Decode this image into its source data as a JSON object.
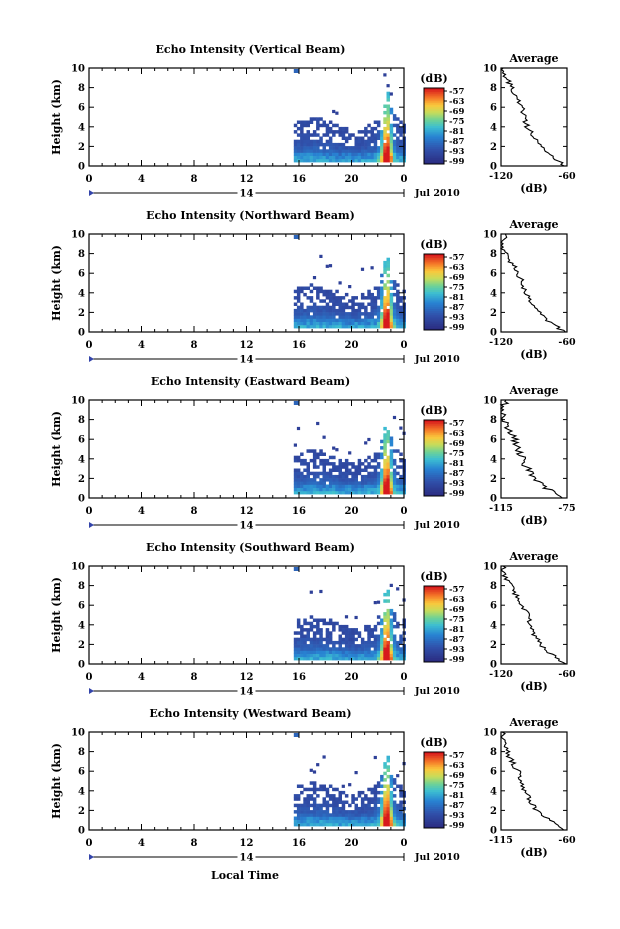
{
  "figure": {
    "xlabel": "Local Time",
    "date_label": "Jul 2010",
    "day_label": "14"
  },
  "chart_data": [
    {
      "type": "heatmap",
      "title": "Echo Intensity (Vertical Beam)",
      "ylabel": "Height (km)",
      "xlim": [
        0,
        24
      ],
      "ylim": [
        0,
        10
      ],
      "xticks": [
        "0",
        "4",
        "8",
        "12",
        "16",
        "20",
        "0"
      ],
      "yticks": [
        "0",
        "2",
        "4",
        "6",
        "8",
        "10"
      ],
      "colorbar": {
        "unit": "(dB)",
        "ticks": [
          "-57",
          "-63",
          "-69",
          "-75",
          "-81",
          "-87",
          "-93",
          "-99"
        ]
      },
      "data_extent": {
        "x_start": 15.6,
        "x_end": 24,
        "top_km": 7.5
      },
      "avg_profile": {
        "title": "Average",
        "xlabel": "(dB)",
        "xlim": [
          -120,
          -60
        ],
        "xticks": [
          "-120",
          "-60"
        ],
        "height_km": [
          0,
          1,
          2,
          3,
          4,
          5,
          6,
          7,
          8,
          9,
          10
        ],
        "db": [
          -62,
          -74,
          -84,
          -90,
          -96,
          -99,
          -101,
          -106,
          -110,
          -115,
          -118
        ]
      }
    },
    {
      "type": "heatmap",
      "title": "Echo Intensity (Northward Beam)",
      "ylabel": "Height (km)",
      "xlim": [
        0,
        24
      ],
      "ylim": [
        0,
        10
      ],
      "xticks": [
        "0",
        "4",
        "8",
        "12",
        "16",
        "20",
        "0"
      ],
      "yticks": [
        "0",
        "2",
        "4",
        "6",
        "8",
        "10"
      ],
      "colorbar": {
        "unit": "(dB)",
        "ticks": [
          "-57",
          "-63",
          "-69",
          "-75",
          "-81",
          "-87",
          "-93",
          "-99"
        ]
      },
      "data_extent": {
        "x_start": 15.6,
        "x_end": 24,
        "top_km": 7.5
      },
      "avg_profile": {
        "title": "Average",
        "xlabel": "(dB)",
        "xlim": [
          -120,
          -60
        ],
        "xticks": [
          "-120",
          "-60"
        ],
        "height_km": [
          0,
          1,
          2,
          3,
          4,
          5,
          6,
          7,
          8,
          9,
          10
        ],
        "db": [
          -62,
          -76,
          -86,
          -92,
          -97,
          -101,
          -104,
          -110,
          -116,
          -120,
          -116
        ]
      }
    },
    {
      "type": "heatmap",
      "title": "Echo Intensity (Eastward Beam)",
      "ylabel": "Height (km)",
      "xlim": [
        0,
        24
      ],
      "ylim": [
        0,
        10
      ],
      "xticks": [
        "0",
        "4",
        "8",
        "12",
        "16",
        "20",
        "0"
      ],
      "yticks": [
        "0",
        "2",
        "4",
        "6",
        "8",
        "10"
      ],
      "colorbar": {
        "unit": "(dB)",
        "ticks": [
          "-57",
          "-63",
          "-69",
          "-75",
          "-81",
          "-87",
          "-93",
          "-99"
        ]
      },
      "data_extent": {
        "x_start": 15.6,
        "x_end": 24,
        "top_km": 7
      },
      "avg_profile": {
        "title": "Average",
        "xlabel": "(dB)",
        "xlim": [
          -115,
          -75
        ],
        "xticks": [
          "-115",
          "-75"
        ],
        "height_km": [
          0,
          1,
          2,
          3,
          4,
          5,
          6,
          7,
          8,
          9,
          10
        ],
        "db": [
          -76,
          -88,
          -95,
          -99,
          -102,
          -105,
          -107,
          -110,
          -113,
          -115,
          -112
        ]
      }
    },
    {
      "type": "heatmap",
      "title": "Echo Intensity (Southward Beam)",
      "ylabel": "Height (km)",
      "xlim": [
        0,
        24
      ],
      "ylim": [
        0,
        10
      ],
      "xticks": [
        "0",
        "4",
        "8",
        "12",
        "16",
        "20",
        "0"
      ],
      "yticks": [
        "0",
        "2",
        "4",
        "6",
        "8",
        "10"
      ],
      "colorbar": {
        "unit": "(dB)",
        "ticks": [
          "-57",
          "-63",
          "-69",
          "-75",
          "-81",
          "-87",
          "-93",
          "-99"
        ]
      },
      "data_extent": {
        "x_start": 15.6,
        "x_end": 24,
        "top_km": 7.5
      },
      "avg_profile": {
        "title": "Average",
        "xlabel": "(dB)",
        "xlim": [
          -120,
          -60
        ],
        "xticks": [
          "-120",
          "-60"
        ],
        "height_km": [
          0,
          1,
          2,
          3,
          4,
          5,
          6,
          7,
          8,
          9,
          10
        ],
        "db": [
          -62,
          -74,
          -84,
          -90,
          -93,
          -96,
          -101,
          -106,
          -111,
          -117,
          -118
        ]
      }
    },
    {
      "type": "heatmap",
      "title": "Echo Intensity (Westward Beam)",
      "ylabel": "Height (km)",
      "xlim": [
        0,
        24
      ],
      "ylim": [
        0,
        10
      ],
      "xticks": [
        "0",
        "4",
        "8",
        "12",
        "16",
        "20",
        "0"
      ],
      "yticks": [
        "0",
        "2",
        "4",
        "6",
        "8",
        "10"
      ],
      "colorbar": {
        "unit": "(dB)",
        "ticks": [
          "-57",
          "-63",
          "-69",
          "-75",
          "-81",
          "-87",
          "-93",
          "-99"
        ]
      },
      "data_extent": {
        "x_start": 15.6,
        "x_end": 24,
        "top_km": 7.5
      },
      "avg_profile": {
        "title": "Average",
        "xlabel": "(dB)",
        "xlim": [
          -115,
          -60
        ],
        "xticks": [
          "-115",
          "-60"
        ],
        "height_km": [
          0,
          1,
          2,
          3,
          4,
          5,
          6,
          7,
          8,
          9,
          10
        ],
        "db": [
          -62,
          -75,
          -85,
          -91,
          -95,
          -98,
          -101,
          -106,
          -110,
          -112,
          -114
        ]
      }
    }
  ]
}
